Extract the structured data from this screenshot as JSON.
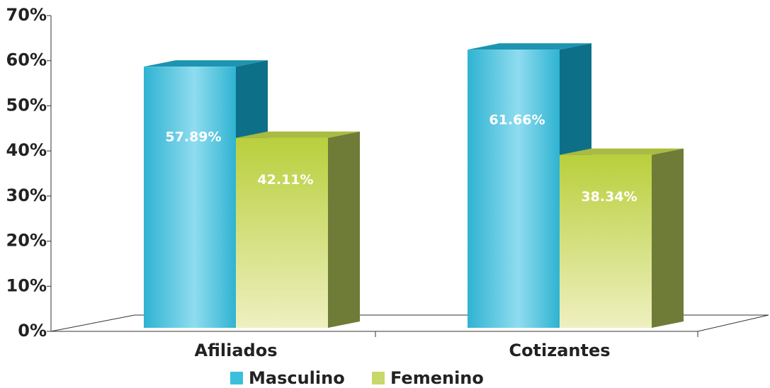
{
  "chart_data": {
    "type": "bar3d",
    "categories": [
      "Afiliados",
      "Cotizantes"
    ],
    "series": [
      {
        "name": "Masculino",
        "color": "#3bbfdc",
        "values": [
          57.89,
          61.66
        ],
        "value_labels": [
          "57.89%",
          "61.66%"
        ]
      },
      {
        "name": "Femenino",
        "color": "#c8d86a",
        "values": [
          42.11,
          38.34
        ],
        "value_labels": [
          "42.11%",
          "38.34%"
        ]
      }
    ],
    "ylim": [
      0,
      70
    ],
    "yticks": [
      {
        "value": 0,
        "label": "0%"
      },
      {
        "value": 10,
        "label": "10%"
      },
      {
        "value": 20,
        "label": "20%"
      },
      {
        "value": 30,
        "label": "30%"
      },
      {
        "value": 40,
        "label": "40%"
      },
      {
        "value": 50,
        "label": "50%"
      },
      {
        "value": 60,
        "label": "60%"
      },
      {
        "value": 70,
        "label": "70%"
      }
    ]
  }
}
